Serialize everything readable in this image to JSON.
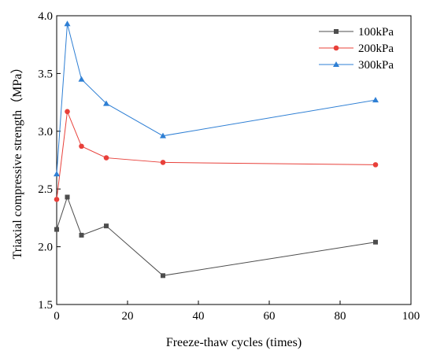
{
  "chart_data": {
    "type": "line",
    "xlabel": "Freeze-thaw cycles (times)",
    "ylabel": "Triaxial compressive strength（MPa）",
    "xlim": [
      0,
      100
    ],
    "ylim": [
      1.5,
      4.0
    ],
    "xticks": [
      0,
      20,
      40,
      60,
      80,
      100
    ],
    "yticks": [
      1.5,
      2.0,
      2.5,
      3.0,
      3.5,
      4.0
    ],
    "xtick_labels": [
      "0",
      "20",
      "40",
      "60",
      "80",
      "100"
    ],
    "ytick_labels": [
      "1.5",
      "2.0",
      "2.5",
      "3.0",
      "3.5",
      "4.0"
    ],
    "grid": false,
    "legend_position": "top-right",
    "x": [
      0,
      3,
      7,
      14,
      30,
      90
    ],
    "series": [
      {
        "name": "100kPa",
        "color": "#4d4d4d",
        "marker": "square",
        "values": [
          2.15,
          2.43,
          2.1,
          2.18,
          1.75,
          2.04
        ]
      },
      {
        "name": "200kPa",
        "color": "#e8403a",
        "marker": "circle",
        "values": [
          2.41,
          3.17,
          2.87,
          2.77,
          2.73,
          2.71
        ]
      },
      {
        "name": "300kPa",
        "color": "#2e7fd4",
        "marker": "triangle",
        "values": [
          2.63,
          3.93,
          3.45,
          3.24,
          2.96,
          3.27
        ]
      }
    ]
  }
}
